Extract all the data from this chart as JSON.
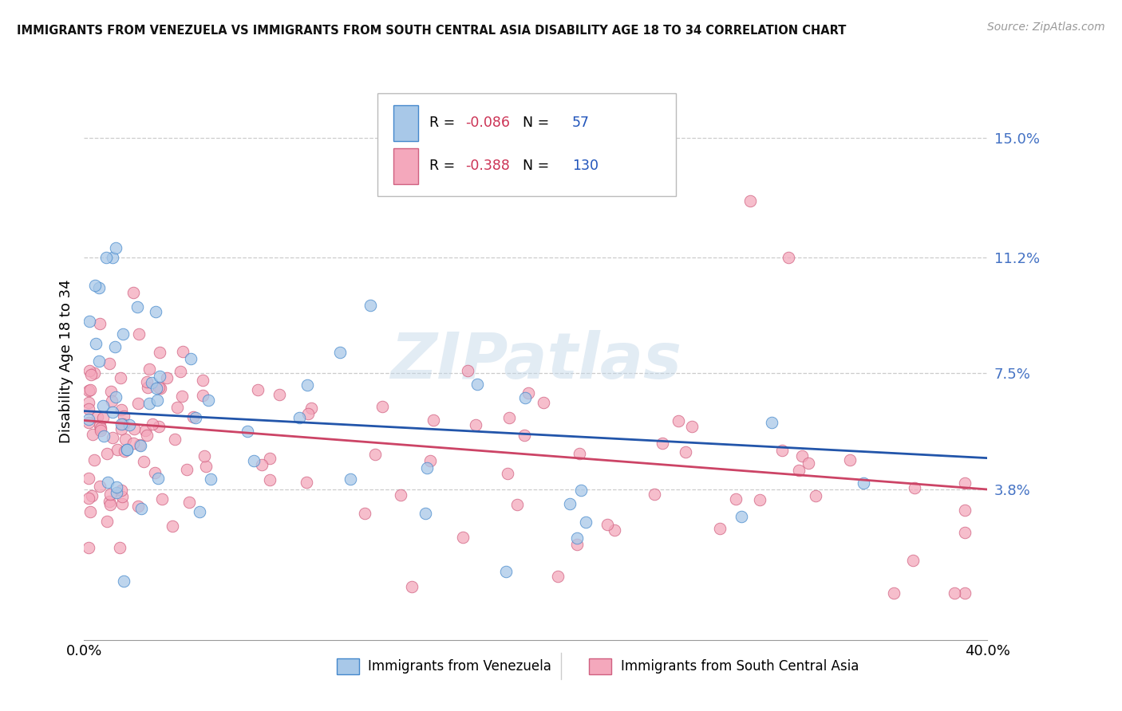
{
  "title": "IMMIGRANTS FROM VENEZUELA VS IMMIGRANTS FROM SOUTH CENTRAL ASIA DISABILITY AGE 18 TO 34 CORRELATION CHART",
  "source": "Source: ZipAtlas.com",
  "ylabel": "Disability Age 18 to 34",
  "ytick_labels": [
    "3.8%",
    "7.5%",
    "11.2%",
    "15.0%"
  ],
  "ytick_values": [
    0.038,
    0.075,
    0.112,
    0.15
  ],
  "xlim": [
    0.0,
    0.4
  ],
  "ylim": [
    -0.01,
    0.168
  ],
  "legend_blue_r": "-0.086",
  "legend_blue_n": "57",
  "legend_pink_r": "-0.388",
  "legend_pink_n": "130",
  "legend_label_blue": "Immigrants from Venezuela",
  "legend_label_pink": "Immigrants from South Central Asia",
  "blue_fill": "#a8c8e8",
  "blue_edge": "#4488cc",
  "pink_fill": "#f4a8bc",
  "pink_edge": "#d06080",
  "blue_line": "#2255aa",
  "pink_line": "#cc4466",
  "right_label_color": "#4472c4",
  "legend_r_color": "#cc3355",
  "legend_n_color": "#2255bb",
  "bg_color": "#ffffff",
  "grid_color": "#cccccc"
}
